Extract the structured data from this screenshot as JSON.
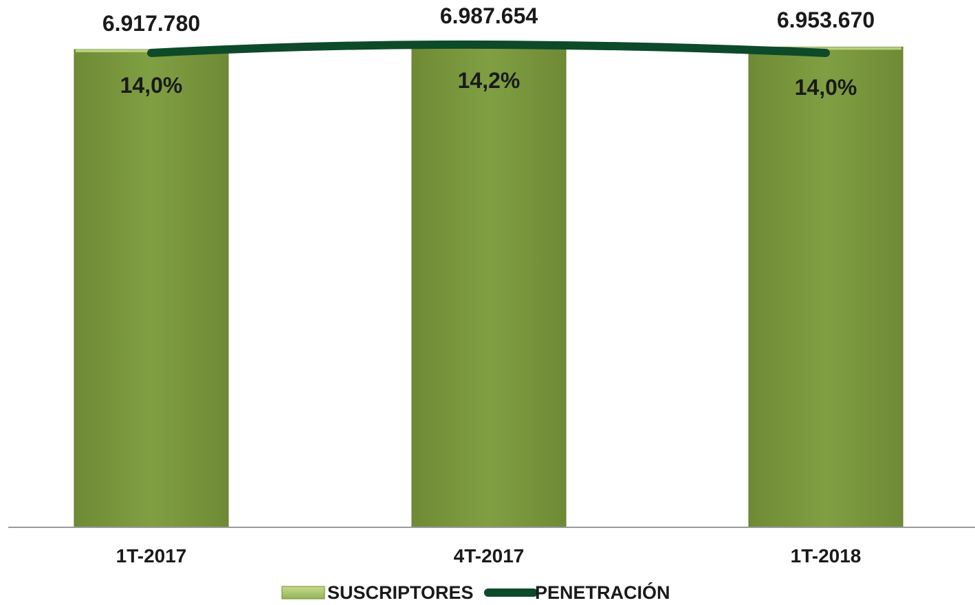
{
  "chart_data": {
    "type": "bar",
    "categories": [
      "1T-2017",
      "4T-2017",
      "1T-2018"
    ],
    "series": [
      {
        "name": "SUSCRIPTORES",
        "kind": "bar",
        "values": [
          6917780,
          6987654,
          6953670
        ],
        "labels": [
          "6.917.780",
          "6.987.654",
          "6.953.670"
        ],
        "color": "#7d9b40"
      },
      {
        "name": "PENETRACIÓN",
        "kind": "line",
        "values": [
          14.0,
          14.2,
          14.0
        ],
        "labels": [
          "14,0%",
          "14,2%",
          "14,0%"
        ],
        "color": "#0d4a2a"
      }
    ],
    "title": "",
    "xlabel": "",
    "ylabel": "",
    "legend_position": "bottom",
    "grid": false
  }
}
